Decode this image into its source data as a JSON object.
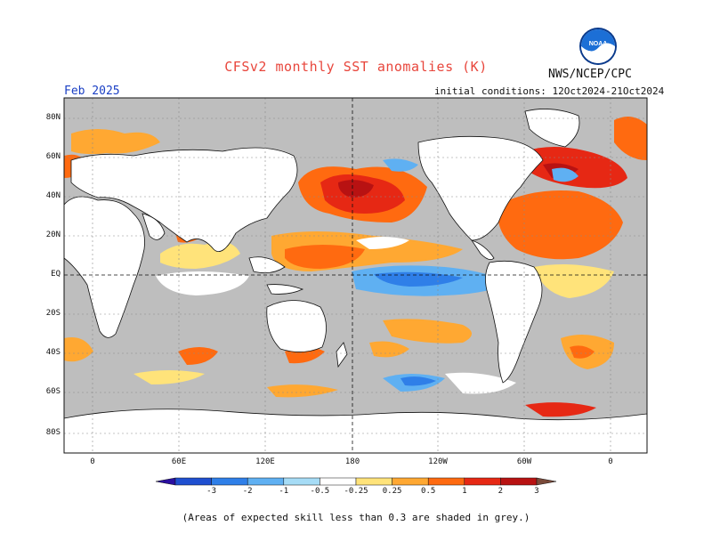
{
  "title": "CFSv2 monthly SST anomalies (K)",
  "agency": "NWS/NCEP/CPC",
  "logo_text": "NOAA",
  "forecast_month": "Feb 2025",
  "initial_conditions": "initial conditions: 12Oct2024-21Oct2024",
  "lat_labels": [
    "80N",
    "60N",
    "40N",
    "20N",
    "EQ",
    "20S",
    "40S",
    "60S",
    "80S"
  ],
  "lon_labels": [
    "0",
    "60E",
    "120E",
    "180",
    "120W",
    "60W",
    "0"
  ],
  "colorbar": {
    "labels": [
      "-3",
      "-2",
      "-1",
      "-0.5",
      "-0.25",
      "0.25",
      "0.5",
      "1",
      "2",
      "3"
    ],
    "colors": [
      "#2a0fa0",
      "#1f4fd0",
      "#2f7fe8",
      "#5fb0f2",
      "#a6dcf6",
      "#ffffff",
      "#ffe37a",
      "#ffa832",
      "#ff6a10",
      "#e62814",
      "#b81212",
      "#7a4a3a"
    ]
  },
  "footnote": "(Areas of expected skill less than 0.3 are shaded in grey.)",
  "colors": {
    "land": "#ffffff",
    "ocean_low_skill": "#bebebe",
    "title": "#e8463c",
    "month": "#1a3fc4"
  }
}
